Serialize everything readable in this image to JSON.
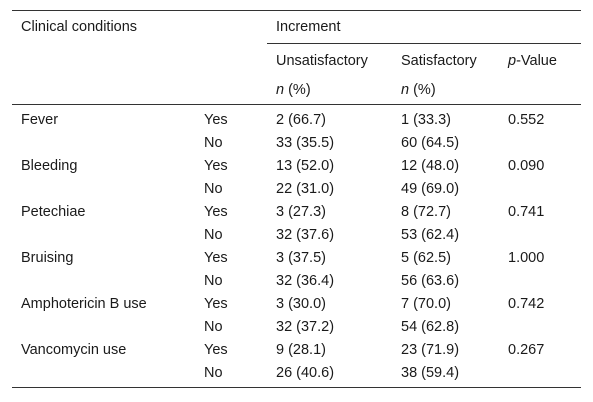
{
  "header": {
    "clinical_conditions": "Clinical conditions",
    "increment": "Increment",
    "unsatisfactory": "Unsatisfactory",
    "satisfactory": "Satisfactory",
    "p_italic": "p",
    "p_rest": "-Value",
    "n_italic": "n",
    "n_rest": " (%)"
  },
  "rows": [
    {
      "condition": "Fever",
      "yes": {
        "label": "Yes",
        "unsat": "2 (66.7)",
        "sat": "1 (33.3)",
        "p": "0.552"
      },
      "no": {
        "label": "No",
        "unsat": "33 (35.5)",
        "sat": "60 (64.5)"
      }
    },
    {
      "condition": "Bleeding",
      "yes": {
        "label": "Yes",
        "unsat": "13 (52.0)",
        "sat": "12 (48.0)",
        "p": "0.090"
      },
      "no": {
        "label": "No",
        "unsat": "22 (31.0)",
        "sat": "49 (69.0)"
      }
    },
    {
      "condition": "Petechiae",
      "yes": {
        "label": "Yes",
        "unsat": "3 (27.3)",
        "sat": "8 (72.7)",
        "p": "0.741"
      },
      "no": {
        "label": "No",
        "unsat": "32 (37.6)",
        "sat": "53 (62.4)"
      }
    },
    {
      "condition": "Bruising",
      "yes": {
        "label": "Yes",
        "unsat": "3 (37.5)",
        "sat": "5 (62.5)",
        "p": "1.000"
      },
      "no": {
        "label": "No",
        "unsat": "32 (36.4)",
        "sat": "56 (63.6)"
      }
    },
    {
      "condition": "Amphotericin B use",
      "yes": {
        "label": "Yes",
        "unsat": "3 (30.0)",
        "sat": "7 (70.0)",
        "p": "0.742"
      },
      "no": {
        "label": "No",
        "unsat": "32 (37.2)",
        "sat": "54 (62.8)"
      }
    },
    {
      "condition": "Vancomycin use",
      "yes": {
        "label": "Yes",
        "unsat": "9 (28.1)",
        "sat": "23 (71.9)",
        "p": "0.267"
      },
      "no": {
        "label": "No",
        "unsat": "26 (40.6)",
        "sat": "38 (59.4)"
      }
    }
  ]
}
